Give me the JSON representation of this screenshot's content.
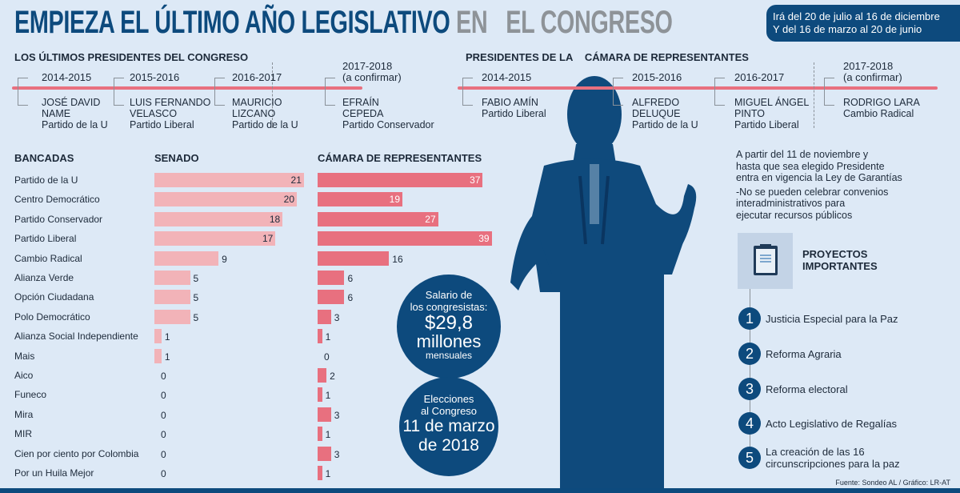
{
  "header": {
    "title_main": "EMPIEZA EL ÚLTIMO AÑO LEGISLATIVO",
    "title_grey": "EN   EL CONGRESO",
    "date_line1": "Irá del 20 de julio al 16 de diciembre",
    "date_line2": "Y del 16 de marzo al 20 de junio"
  },
  "congreso": {
    "heading": "LOS ÚLTIMOS PRESIDENTES DEL CONGRESO",
    "items": [
      {
        "years": "2014-2015",
        "name1": "JOSÉ DAVID",
        "name2": "NAME",
        "party": "Partido de la U"
      },
      {
        "years": "2015-2016",
        "name1": "LUIS FERNANDO",
        "name2": "VELASCO",
        "party": "Partido Liberal"
      },
      {
        "years": "2016-2017",
        "name1": "MAURICIO",
        "name2": "LIZCANO",
        "party": "Partido de la U"
      },
      {
        "years": "2017-2018",
        "note": "(a confirmar)",
        "name1": "EFRAÍN",
        "name2": "CEPEDA",
        "party": "Partido Conservador"
      }
    ]
  },
  "camara": {
    "heading1": "PRESIDENTES DE LA",
    "heading2": "CÁMARA DE REPRESENTANTES",
    "items": [
      {
        "years": "2014-2015",
        "name1": "FABIO AMÍN",
        "name2": "",
        "party": "Partido Liberal"
      },
      {
        "years": "2015-2016",
        "name1": "ALFREDO",
        "name2": "DELUQUE",
        "party": "Partido de la U"
      },
      {
        "years": "2016-2017",
        "name1": "MIGUEL ÁNGEL",
        "name2": "PINTO",
        "party": "Partido Liberal"
      },
      {
        "years": "2017-2018",
        "note": "(a confirmar)",
        "name1": "RODRIGO LARA",
        "name2": "",
        "party": "Cambio Radical"
      }
    ]
  },
  "chart_data": {
    "type": "bar",
    "orientation": "horizontal",
    "title": "BANCADAS",
    "categories": [
      "Partido de la U",
      "Centro Democrático",
      "Partido Conservador",
      "Partido Liberal",
      "Cambio Radical",
      "Alianza Verde",
      "Opción Ciudadana",
      "Polo Democrático",
      "Alianza Social Independiente",
      "Mais",
      "Aico",
      "Funeco",
      "Mira",
      "MIR",
      "Cien por ciento por Colombia",
      "Por un Huila Mejor"
    ],
    "series": [
      {
        "name": "SENADO",
        "color": "#f2b3b8",
        "values": [
          21,
          20,
          18,
          17,
          9,
          5,
          5,
          5,
          1,
          1,
          0,
          0,
          0,
          0,
          0,
          0
        ]
      },
      {
        "name": "CÁMARA DE REPRESENTANTES",
        "color": "#e8707f",
        "values": [
          37,
          19,
          27,
          39,
          16,
          6,
          6,
          3,
          1,
          0,
          2,
          1,
          3,
          1,
          3,
          1
        ]
      }
    ]
  },
  "salary": {
    "line1": "Salario de",
    "line2": "los congresistas:",
    "amount": "$29,8",
    "unit": "millones",
    "period": "mensuales"
  },
  "elections": {
    "line1": "Elecciones",
    "line2": "al Congreso",
    "date1": "11 de marzo",
    "date2": "de 2018"
  },
  "garantias": {
    "line1": "A partir del 11 de noviembre y",
    "line2": "hasta que sea elegido Presidente",
    "line3": "entra en vigencia la Ley de Garantías",
    "note1": "-No se pueden celebrar convenios",
    "note2": "interadministrativos para",
    "note3": "ejecutar recursos públicos"
  },
  "proyectos": {
    "heading1": "PROYECTOS",
    "heading2": "IMPORTANTES",
    "items": [
      {
        "n": "1",
        "text": "Justicia Especial para la Paz"
      },
      {
        "n": "2",
        "text": "Reforma Agraria"
      },
      {
        "n": "3",
        "text": "Reforma electoral"
      },
      {
        "n": "4",
        "text": "Acto Legislativo de Regalías"
      },
      {
        "n": "5",
        "text": "La creación de las 16",
        "text2": "circunscripciones para la paz"
      }
    ]
  },
  "source": "Fuente: Sondeo AL / Gráfico: LR-AT"
}
